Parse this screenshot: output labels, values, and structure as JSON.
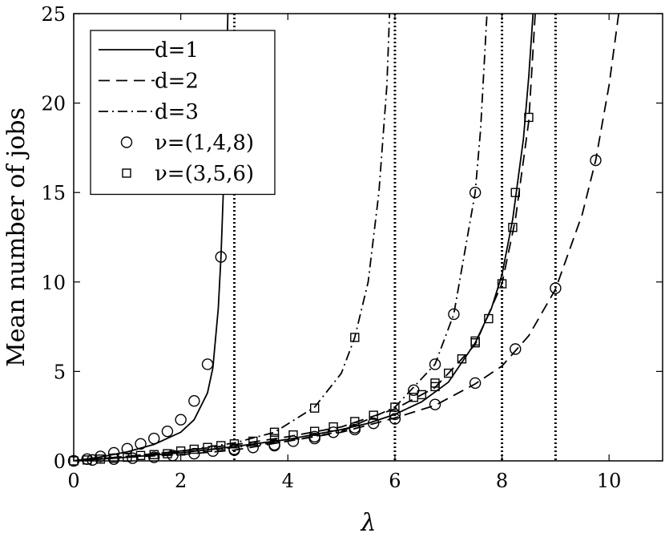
{
  "chart_data": {
    "type": "line",
    "xlabel": "λ",
    "ylabel": "Mean number of jobs",
    "xlim": [
      0,
      11
    ],
    "ylim": [
      0,
      25
    ],
    "xticks": [
      0,
      2,
      4,
      6,
      8,
      10
    ],
    "yticks": [
      0,
      5,
      10,
      15,
      20,
      25
    ],
    "grid": false,
    "legend_position": "top-left",
    "vertical_lines": [
      3,
      6,
      8,
      9
    ],
    "series": [
      {
        "name": "d=1",
        "style": "solid",
        "group": "(1,4,8)",
        "points": [
          [
            0,
            0
          ],
          [
            0.5,
            0.22
          ],
          [
            1,
            0.5
          ],
          [
            1.5,
            0.92
          ],
          [
            2,
            1.6
          ],
          [
            2.25,
            2.3
          ],
          [
            2.5,
            3.8
          ],
          [
            2.6,
            5.2
          ],
          [
            2.7,
            8.5
          ],
          [
            2.75,
            11.4
          ],
          [
            2.8,
            15.5
          ],
          [
            2.85,
            21.0
          ],
          [
            2.88,
            25
          ]
        ]
      },
      {
        "name": "d=1",
        "style": "solid",
        "group": "(3,5,6)",
        "points": [
          [
            0,
            0
          ],
          [
            1,
            0.2
          ],
          [
            2,
            0.45
          ],
          [
            3,
            0.8
          ],
          [
            4,
            1.2
          ],
          [
            5,
            1.75
          ],
          [
            5.5,
            2.1
          ],
          [
            6,
            2.6
          ],
          [
            6.5,
            3.3
          ],
          [
            7,
            4.4
          ],
          [
            7.5,
            6.6
          ],
          [
            7.8,
            8.5
          ],
          [
            8,
            10.4
          ],
          [
            8.2,
            13.5
          ],
          [
            8.4,
            18.0
          ],
          [
            8.5,
            21.5
          ],
          [
            8.58,
            25
          ]
        ]
      },
      {
        "name": "d=2",
        "style": "dashed",
        "group": "(1,4,8)",
        "points": [
          [
            0,
            0
          ],
          [
            1,
            0.2
          ],
          [
            2,
            0.35
          ],
          [
            3,
            0.6
          ],
          [
            4,
            1.1
          ],
          [
            5,
            1.6
          ],
          [
            6,
            2.4
          ],
          [
            6.75,
            3.1
          ],
          [
            7.5,
            4.3
          ],
          [
            8,
            5.3
          ],
          [
            8.5,
            7.0
          ],
          [
            9,
            9.6
          ],
          [
            9.5,
            13.8
          ],
          [
            9.75,
            16.8
          ],
          [
            10,
            21.0
          ],
          [
            10.18,
            25
          ]
        ]
      },
      {
        "name": "d=2",
        "style": "dashed",
        "group": "(3,5,6)",
        "points": [
          [
            0,
            0
          ],
          [
            1,
            0.25
          ],
          [
            2,
            0.55
          ],
          [
            3,
            0.9
          ],
          [
            4,
            1.35
          ],
          [
            5,
            1.9
          ],
          [
            6,
            2.9
          ],
          [
            6.75,
            4.1
          ],
          [
            7.5,
            6.5
          ],
          [
            8,
            9.9
          ],
          [
            8.25,
            13.5
          ],
          [
            8.5,
            19.0
          ],
          [
            8.62,
            25
          ]
        ]
      },
      {
        "name": "d=3",
        "style": "dashdot",
        "group": "(1,4,8)",
        "points": [
          [
            0,
            0
          ],
          [
            1,
            0.25
          ],
          [
            2,
            0.5
          ],
          [
            3,
            0.75
          ],
          [
            4,
            1.1
          ],
          [
            5,
            1.65
          ],
          [
            6,
            3.0
          ],
          [
            6.75,
            5.4
          ],
          [
            7.1,
            8.2
          ],
          [
            7.5,
            15.0
          ],
          [
            7.6,
            18.5
          ],
          [
            7.72,
            25
          ]
        ]
      },
      {
        "name": "d=3",
        "style": "dashdot",
        "group": "(3,5,6)",
        "points": [
          [
            0,
            0
          ],
          [
            1,
            0.25
          ],
          [
            2,
            0.55
          ],
          [
            3,
            1.0
          ],
          [
            3.75,
            1.6
          ],
          [
            4.5,
            3.0
          ],
          [
            5,
            4.9
          ],
          [
            5.25,
            6.9
          ],
          [
            5.5,
            10.0
          ],
          [
            5.7,
            15.0
          ],
          [
            5.85,
            21.0
          ],
          [
            5.9,
            25
          ]
        ]
      }
    ],
    "markers": [
      {
        "name": "ν=(1,4,8)",
        "marker": "circle",
        "points": [
          [
            0,
            0
          ],
          [
            0.25,
            0.1
          ],
          [
            0.5,
            0.25
          ],
          [
            0.75,
            0.45
          ],
          [
            1,
            0.68
          ],
          [
            1.25,
            0.95
          ],
          [
            1.5,
            1.25
          ],
          [
            1.75,
            1.65
          ],
          [
            2,
            2.3
          ],
          [
            2.25,
            3.35
          ],
          [
            2.5,
            5.4
          ],
          [
            2.75,
            11.4
          ],
          [
            0.35,
            0.05
          ],
          [
            0.75,
            0.1
          ],
          [
            1.1,
            0.15
          ],
          [
            1.5,
            0.2
          ],
          [
            1.85,
            0.3
          ],
          [
            2.25,
            0.4
          ],
          [
            2.6,
            0.55
          ],
          [
            3,
            0.65
          ],
          [
            3.35,
            0.75
          ],
          [
            3.75,
            0.9
          ],
          [
            4.1,
            1.1
          ],
          [
            4.5,
            1.35
          ],
          [
            4.85,
            1.6
          ],
          [
            5.25,
            1.85
          ],
          [
            5.6,
            2.1
          ],
          [
            6,
            2.35
          ],
          [
            6.75,
            3.15
          ],
          [
            7.5,
            4.35
          ],
          [
            8.25,
            6.25
          ],
          [
            9,
            9.65
          ],
          [
            9.75,
            16.8
          ],
          [
            3,
            0.6
          ],
          [
            3.75,
            0.85
          ],
          [
            4.5,
            1.25
          ],
          [
            5.25,
            1.75
          ],
          [
            6,
            2.6
          ],
          [
            6.35,
            3.95
          ],
          [
            6.75,
            5.4
          ],
          [
            7.1,
            8.2
          ],
          [
            7.5,
            15.0
          ]
        ]
      },
      {
        "name": "ν=(3,5,6)",
        "marker": "square",
        "points": [
          [
            0,
            0
          ],
          [
            0.25,
            0.05
          ],
          [
            0.5,
            0.1
          ],
          [
            0.75,
            0.15
          ],
          [
            1,
            0.2
          ],
          [
            1.25,
            0.3
          ],
          [
            1.5,
            0.35
          ],
          [
            1.75,
            0.4
          ],
          [
            2,
            0.55
          ],
          [
            2.25,
            0.65
          ],
          [
            2.5,
            0.75
          ],
          [
            2.75,
            0.85
          ],
          [
            3,
            0.95
          ],
          [
            3.35,
            1.1
          ],
          [
            3.75,
            1.25
          ],
          [
            4.1,
            1.45
          ],
          [
            4.5,
            1.65
          ],
          [
            4.85,
            1.9
          ],
          [
            5.25,
            2.2
          ],
          [
            5.6,
            2.55
          ],
          [
            6,
            3.0
          ],
          [
            6.35,
            3.55
          ],
          [
            6.75,
            4.15
          ],
          [
            7,
            4.9
          ],
          [
            7.25,
            5.7
          ],
          [
            7.5,
            6.6
          ],
          [
            7.75,
            7.95
          ],
          [
            8,
            9.9
          ],
          [
            8.2,
            13.05
          ],
          [
            8.25,
            15.0
          ],
          [
            8.5,
            19.2
          ],
          [
            3.75,
            1.6
          ],
          [
            4.5,
            2.95
          ],
          [
            5.25,
            6.9
          ],
          [
            6.5,
            3.7
          ],
          [
            6.75,
            4.35
          ],
          [
            7.5,
            6.7
          ]
        ]
      }
    ],
    "legend": [
      {
        "label": "d=1",
        "style": "solid"
      },
      {
        "label": "d=2",
        "style": "dashed"
      },
      {
        "label": "d=3",
        "style": "dashdot"
      },
      {
        "label": "ν=(1,4,8)",
        "marker": "circle"
      },
      {
        "label": "ν=(3,5,6)",
        "marker": "square"
      }
    ]
  }
}
